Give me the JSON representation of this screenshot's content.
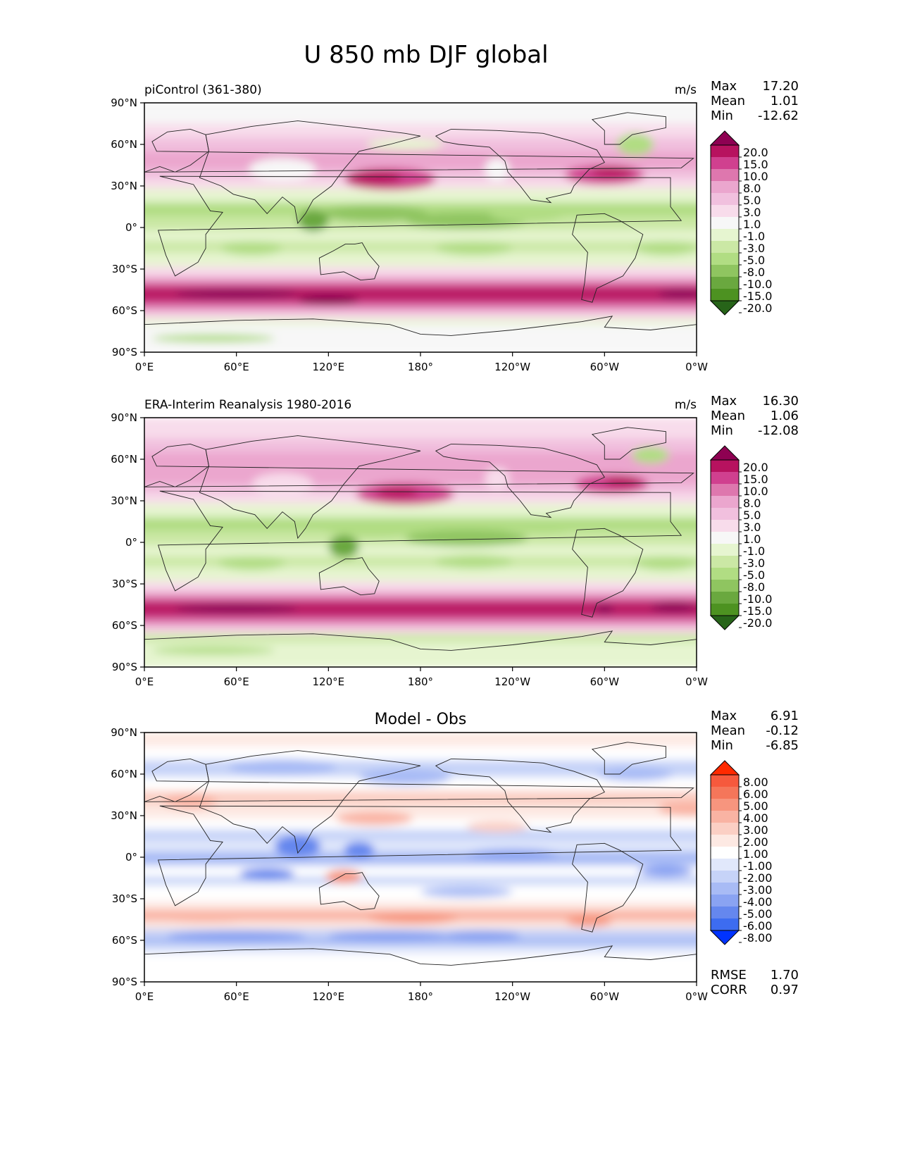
{
  "figure": {
    "title": "U 850 mb DJF global",
    "lon_ticks": [
      "0°E",
      "60°E",
      "120°E",
      "180°",
      "120°W",
      "60°W",
      "0°W"
    ],
    "lat_ticks": [
      "90°N",
      "60°N",
      "30°N",
      "0°",
      "30°S",
      "60°S",
      "90°S"
    ]
  },
  "panels": [
    {
      "id": "model",
      "left_title": "piControl (361-380)",
      "center_title": "",
      "units": "m/s",
      "stats": [
        {
          "label": "Max",
          "value": "17.20"
        },
        {
          "label": "Mean",
          "value": "1.01"
        },
        {
          "label": "Min",
          "value": "-12.62"
        }
      ],
      "colorbar": {
        "labels": [
          "20.0",
          "15.0",
          "10.0",
          "8.0",
          "5.0",
          "3.0",
          "1.0",
          "-1.0",
          "-3.0",
          "-5.0",
          "-8.0",
          "-10.0",
          "-15.0",
          "-20.0"
        ],
        "colors": [
          "#8e0152",
          "#b7125f",
          "#d0408f",
          "#de77ae",
          "#eba6ce",
          "#f1c0de",
          "#f8dceb",
          "#f7f7f7",
          "#e6f5d0",
          "#cbe8a5",
          "#b1dd83",
          "#8fc560",
          "#6aa83f",
          "#4d9221",
          "#276419"
        ]
      },
      "extra_stats": []
    },
    {
      "id": "obs",
      "left_title": "ERA-Interim Reanalysis 1980-2016",
      "center_title": "",
      "units": "m/s",
      "stats": [
        {
          "label": "Max",
          "value": "16.30"
        },
        {
          "label": "Mean",
          "value": "1.06"
        },
        {
          "label": "Min",
          "value": "-12.08"
        }
      ],
      "colorbar": {
        "labels": [
          "20.0",
          "15.0",
          "10.0",
          "8.0",
          "5.0",
          "3.0",
          "1.0",
          "-1.0",
          "-3.0",
          "-5.0",
          "-8.0",
          "-10.0",
          "-15.0",
          "-20.0"
        ],
        "colors": [
          "#8e0152",
          "#b7125f",
          "#d0408f",
          "#de77ae",
          "#eba6ce",
          "#f1c0de",
          "#f8dceb",
          "#f7f7f7",
          "#e6f5d0",
          "#cbe8a5",
          "#b1dd83",
          "#8fc560",
          "#6aa83f",
          "#4d9221",
          "#276419"
        ]
      },
      "extra_stats": []
    },
    {
      "id": "diff",
      "left_title": "",
      "center_title": "Model - Obs",
      "units": "",
      "stats": [
        {
          "label": "Max",
          "value": "6.91"
        },
        {
          "label": "Mean",
          "value": "-0.12"
        },
        {
          "label": "Min",
          "value": "-6.85"
        }
      ],
      "colorbar": {
        "labels": [
          "8.00",
          "6.00",
          "5.00",
          "4.00",
          "3.00",
          "2.00",
          "1.00",
          "-1.00",
          "-2.00",
          "-3.00",
          "-4.00",
          "-5.00",
          "-6.00",
          "-8.00"
        ],
        "colors": [
          "#ff2a00",
          "#f6593d",
          "#f5765a",
          "#f7957e",
          "#f9b3a3",
          "#fbcfc4",
          "#fde9e3",
          "#ffffff",
          "#e1e8fb",
          "#c6d3f8",
          "#a8bbf5",
          "#8aa3f2",
          "#6587ee",
          "#3d6cf0",
          "#0033ff"
        ]
      },
      "extra_stats": [
        {
          "label": "RMSE",
          "value": "1.70"
        },
        {
          "label": "CORR",
          "value": "0.97"
        }
      ]
    }
  ]
}
